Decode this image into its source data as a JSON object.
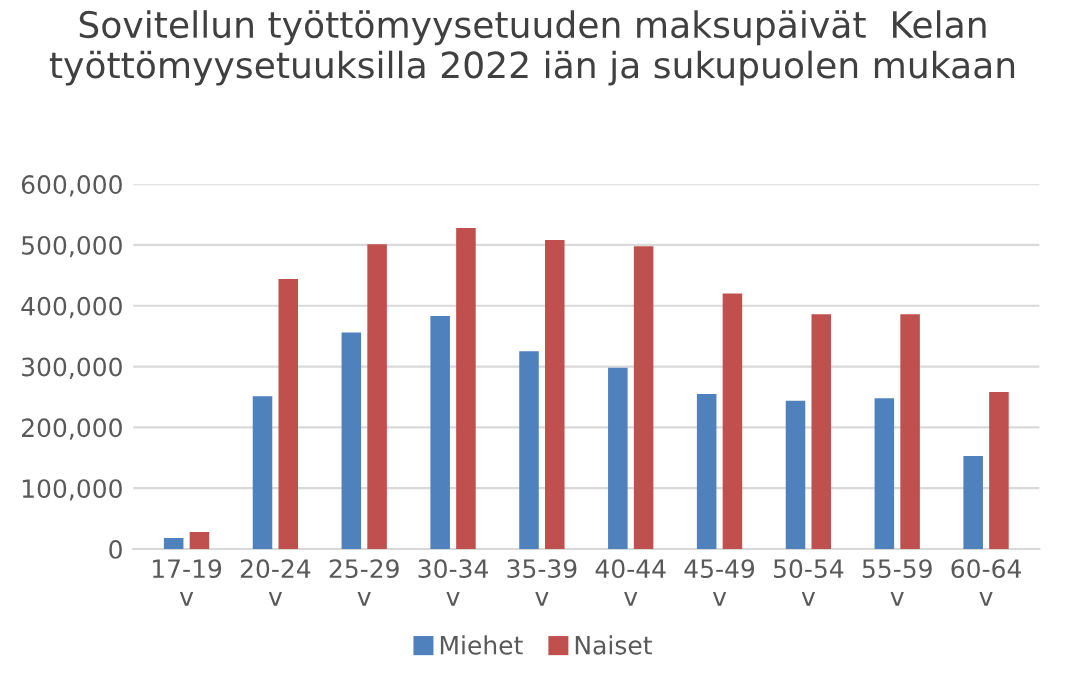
{
  "chart_data": {
    "type": "bar",
    "title": "Sovitellun työttömyysetuuden maksupäivät  Kelan työttömyysetuuksilla 2022 iän ja sukupuolen mukaan",
    "categories": [
      "17-19 v",
      "20-24 v",
      "25-29 v",
      "30-34 v",
      "35-39 v",
      "40-44 v",
      "45-49 v",
      "50-54 v",
      "55-59 v",
      "60-64 v"
    ],
    "series": [
      {
        "name": "Miehet",
        "color": "#4f81bd",
        "values": [
          18000,
          251000,
          356000,
          383000,
          325000,
          298000,
          255000,
          244000,
          248000,
          153000
        ]
      },
      {
        "name": "Naiset",
        "color": "#c0504d",
        "values": [
          28000,
          444000,
          501000,
          528000,
          508000,
          498000,
          420000,
          386000,
          386000,
          258000
        ]
      }
    ],
    "ylim": [
      0,
      600000
    ],
    "yticks": [
      {
        "value": 0,
        "label": "0"
      },
      {
        "value": 100000,
        "label": "100,000"
      },
      {
        "value": 200000,
        "label": "200,000"
      },
      {
        "value": 300000,
        "label": "300,000"
      },
      {
        "value": 400000,
        "label": "400,000"
      },
      {
        "value": 500000,
        "label": "500,000"
      },
      {
        "value": 600000,
        "label": "600,000"
      }
    ],
    "grid": "y",
    "legend": "bottom"
  }
}
